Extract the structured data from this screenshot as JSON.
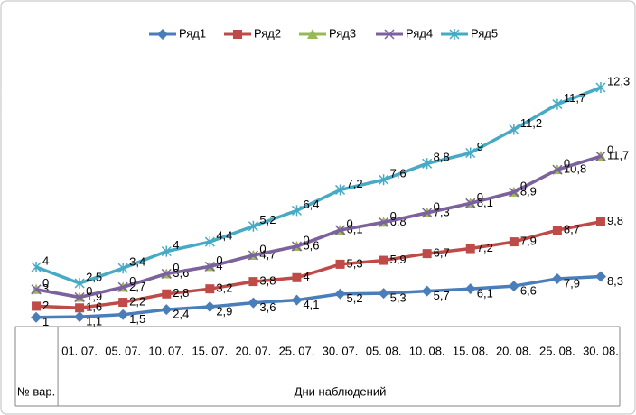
{
  "chart_data": {
    "type": "line",
    "stacked": true,
    "categories": [
      null,
      "01. 07.",
      "05. 07.",
      "10. 07.",
      "15. 07.",
      "20. 07.",
      "25. 07.",
      "30. 07.",
      "05. 08.",
      "10. 08.",
      "15. 08.",
      "20. 08.",
      "25. 08.",
      "30. 08."
    ],
    "category_groups": [
      {
        "label": "№ вар.",
        "count": 1
      },
      {
        "label": "Дни наблюдений",
        "count": 13
      }
    ],
    "ylim": [
      0,
      45
    ],
    "legend": "top",
    "series": [
      {
        "name": "Ряд1",
        "color": "#4a7ebb",
        "marker": "diamond",
        "values": [
          1,
          1.1,
          1.5,
          2.4,
          2.9,
          3.6,
          4.1,
          5.2,
          5.3,
          5.7,
          6.1,
          6.6,
          7.9,
          8.3
        ],
        "value_labels": [
          "1",
          "1,1",
          "1,5",
          "2,4",
          "2,9",
          "3,6",
          "4,1",
          "5,2",
          "5,3",
          "5,7",
          "6,1",
          "6,6",
          "7,9",
          "8,3"
        ]
      },
      {
        "name": "Ряд2",
        "color": "#be4b48",
        "marker": "square",
        "values": [
          2,
          1.6,
          2.2,
          2.8,
          3.2,
          3.8,
          4,
          5.3,
          5.9,
          6.7,
          7.2,
          7.9,
          8.7,
          9.8
        ],
        "value_labels": [
          "2",
          "1,6",
          "2,2",
          "2,8",
          "3,2",
          "3,8",
          "4",
          "5,3",
          "5,9",
          "6,7",
          "7,2",
          "7,9",
          "8,7",
          "9,8"
        ]
      },
      {
        "name": "Ряд3",
        "color": "#98b954",
        "marker": "triangle",
        "values": [
          3,
          1.9,
          2.7,
          3.6,
          4,
          4.7,
          5.6,
          6.1,
          6.8,
          7.3,
          8.1,
          8.9,
          10.8,
          11.7
        ],
        "value_labels": [
          "3",
          "1,9",
          "2,7",
          "3,6",
          "4",
          "4,7",
          "5,6",
          "6,1",
          "6,8",
          "7,3",
          "8,1",
          "8,9",
          "10,8",
          "11,7"
        ]
      },
      {
        "name": "Ряд4",
        "color": "#7d60a0",
        "marker": "x",
        "values": [
          0,
          0,
          0,
          0,
          0,
          0,
          0,
          0,
          0,
          0,
          0,
          0,
          0,
          0
        ]
      },
      {
        "name": "Ряд5",
        "color": "#46aac5",
        "marker": "star",
        "values": [
          4,
          2.5,
          3.4,
          4,
          4.4,
          5.2,
          6.4,
          7.2,
          7.6,
          8.8,
          9,
          11.2,
          11.7,
          12.3
        ],
        "value_labels": [
          "4",
          "2,5",
          "3,4",
          "4",
          "4,4",
          "5,2",
          "6,4",
          "7,2",
          "7,6",
          "8,8",
          "9",
          "11,2",
          "11,7",
          "12,3"
        ]
      }
    ]
  }
}
